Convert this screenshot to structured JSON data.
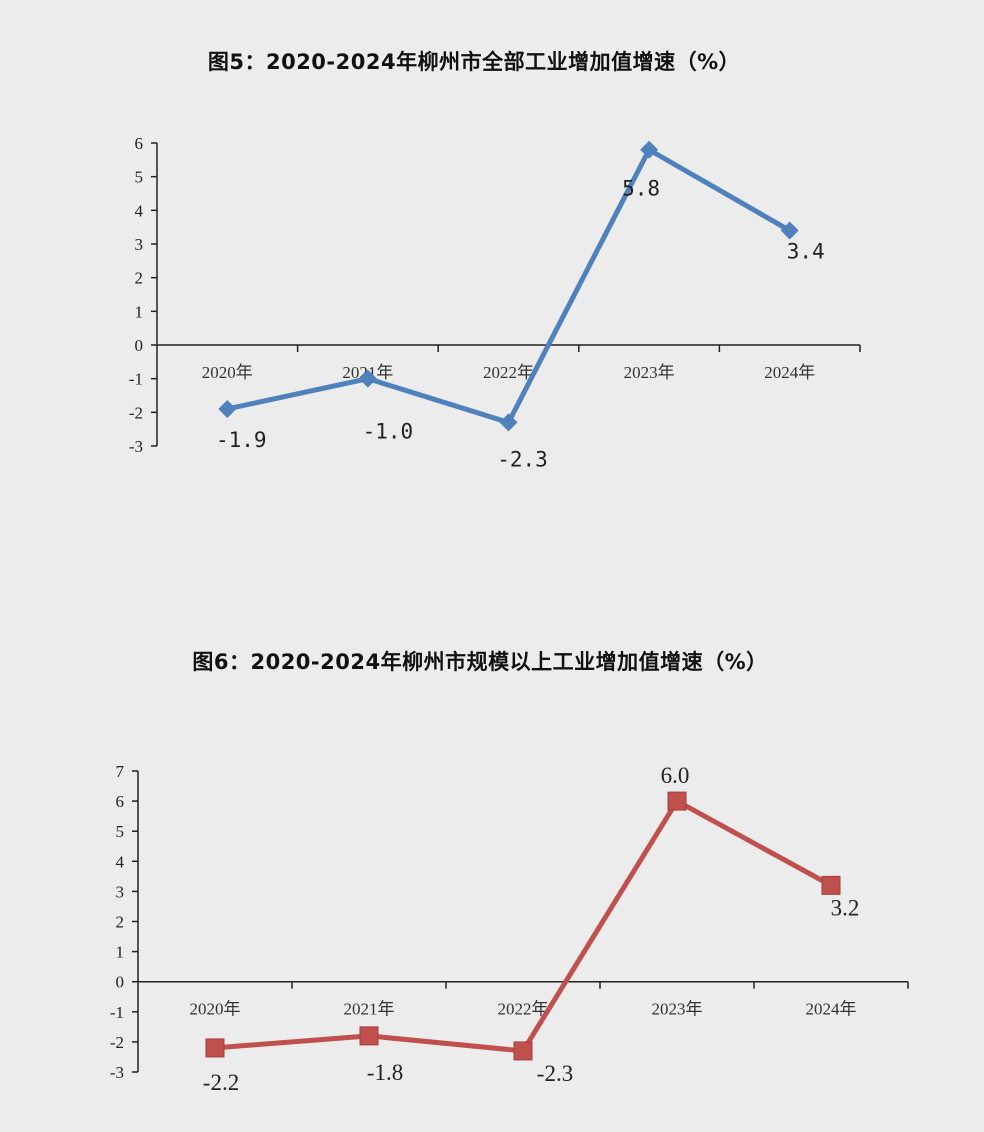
{
  "chart_data": [
    {
      "type": "line",
      "title": "图5：2020-2024年柳州市全部工业增加值增速（%）",
      "categories": [
        "2020年",
        "2021年",
        "2022年",
        "2023年",
        "2024年"
      ],
      "series": [
        {
          "values": [
            -1.9,
            -1.0,
            -2.3,
            5.8,
            3.4
          ],
          "color": "#4f81bd",
          "marker": "diamond"
        }
      ],
      "data_labels": [
        "-1.9",
        "-1.0",
        "-2.3",
        "5.8",
        "3.4"
      ],
      "yticks": [
        "-3",
        "-2",
        "-1",
        "0",
        "1",
        "2",
        "3",
        "4",
        "5",
        "6"
      ],
      "ylim": [
        -3,
        6
      ],
      "grid": false,
      "legend": "none"
    },
    {
      "type": "line",
      "title": "图6：2020-2024年柳州市规模以上工业增加值增速（%）",
      "categories": [
        "2020年",
        "2021年",
        "2022年",
        "2023年",
        "2024年"
      ],
      "series": [
        {
          "values": [
            -2.2,
            -1.8,
            -2.3,
            6.0,
            3.2
          ],
          "color": "#c0504d",
          "marker": "square"
        }
      ],
      "data_labels": [
        "-2.2",
        "-1.8",
        "-2.3",
        "6.0",
        "3.2"
      ],
      "yticks": [
        "-3",
        "-2",
        "-1",
        "0",
        "1",
        "2",
        "3",
        "4",
        "5",
        "6",
        "7"
      ],
      "ylim": [
        -3,
        7
      ],
      "grid": false,
      "legend": "none"
    }
  ]
}
